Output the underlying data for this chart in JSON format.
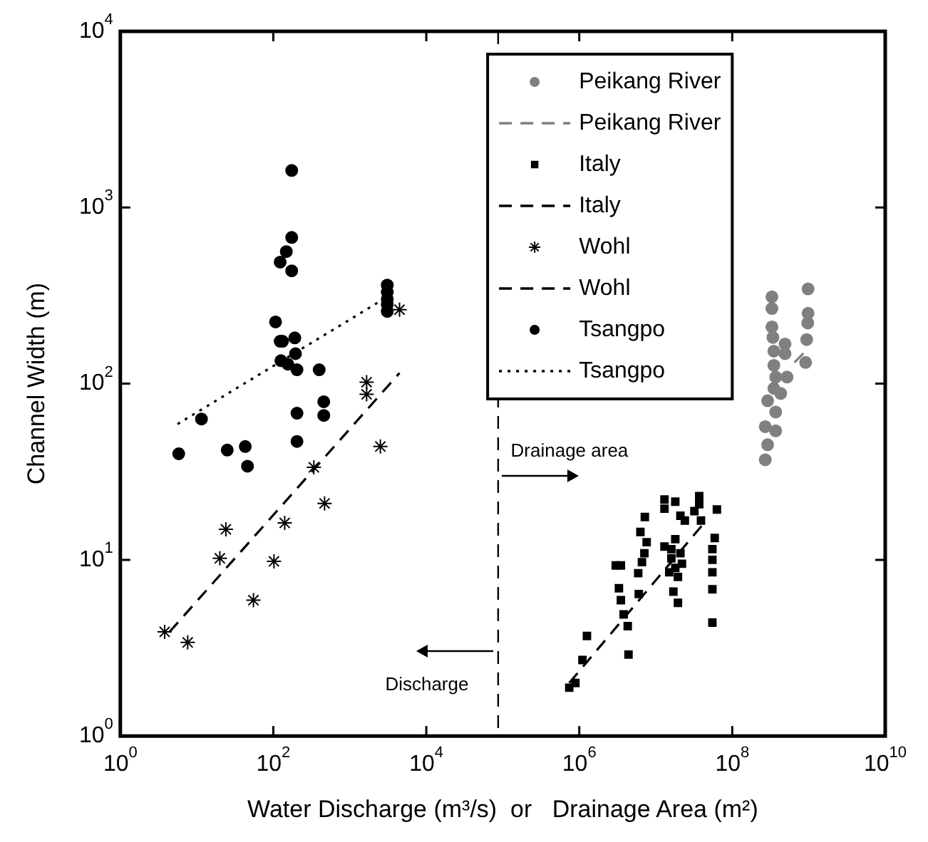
{
  "chart_data": {
    "type": "scatter",
    "xlabel": "Water Discharge (m³/s)  or   Drainage Area (m²)",
    "ylabel": "Channel Width (m)",
    "log": "xy",
    "grid": false,
    "legend": "top right",
    "xlim": [
      1,
      10000000000
    ],
    "ylim": [
      1,
      10000
    ],
    "xticks": [
      {
        "value": 1,
        "label": "10$^{0}$"
      },
      {
        "value": 100,
        "label": "10$^{2}$"
      },
      {
        "value": 10000,
        "label": "10$^{4}$"
      },
      {
        "value": 1000000,
        "label": "10$^{6}$"
      },
      {
        "value": 100000000,
        "label": "10$^{8}$"
      },
      {
        "value": 10000000000,
        "label": "10$^{10}$"
      }
    ],
    "yticks": [
      {
        "value": 1,
        "label": "10$^{0}$"
      },
      {
        "value": 10,
        "label": "10$^{1}$"
      },
      {
        "value": 100,
        "label": "10$^{2}$"
      },
      {
        "value": 1000,
        "label": "10$^{3}$"
      },
      {
        "value": 10000,
        "label": "10$^{4}$"
      }
    ],
    "ref_lines": [
      {
        "axis": "x",
        "value": 87000,
        "color": "#000000",
        "line_style": "dashed"
      }
    ],
    "annotations": [
      "Drainage area",
      "Discharge"
    ],
    "series": [
      {
        "name": "Peikang River",
        "color": "#808080",
        "marker": "circle",
        "x": [
          330000000,
          330000000,
          330000000,
          340000000,
          350000000,
          350000000,
          370000000,
          350000000,
          290000000,
          430000000,
          370000000,
          270000000,
          370000000,
          290000000,
          270000000,
          490000000,
          490000000,
          980000000,
          980000000,
          970000000,
          940000000,
          910000000,
          520000000
        ],
        "values": [
          311,
          267,
          210,
          183,
          153,
          127,
          109,
          94,
          80,
          88,
          69,
          57,
          54,
          45,
          37,
          168,
          148,
          345,
          251,
          221,
          178,
          132,
          109
        ]
      },
      {
        "name": "Peikang River",
        "type": "line",
        "color": "#808080",
        "marker": "none",
        "line_style": "dashed",
        "x": [
          650000000,
          910000000
        ],
        "values": [
          132,
          153
        ]
      },
      {
        "name": "Italy",
        "color": "#000000",
        "marker": "square",
        "x": [
          740000,
          890000,
          1100000,
          1260000,
          4400000,
          3800000,
          4300000,
          3300000,
          3500000,
          6000000,
          3000000,
          3500000,
          5900000,
          6600000,
          7100000,
          6300000,
          7600000,
          7200000,
          13000000,
          13000000,
          18000000,
          21000000,
          24000000,
          13000000,
          16000000,
          18000000,
          19500000,
          17000000,
          19500000,
          15000000,
          21000000,
          22000000,
          18000000,
          16000000,
          37000000,
          37000000,
          32000000,
          39000000,
          63000000,
          59000000,
          55000000,
          55000000,
          55000000,
          55000000,
          55000000
        ],
        "values": [
          1.88,
          2.0,
          2.7,
          3.7,
          2.9,
          4.9,
          4.2,
          6.9,
          5.9,
          6.4,
          9.3,
          9.3,
          8.4,
          9.7,
          10.9,
          14.4,
          12.6,
          17.5,
          22,
          19.5,
          21.4,
          17.8,
          16.7,
          11.9,
          10.2,
          9.0,
          8.0,
          6.6,
          5.7,
          8.5,
          10.9,
          9.5,
          13.1,
          11.5,
          23,
          20.7,
          18.9,
          16.7,
          19.3,
          13.3,
          11.5,
          10.0,
          8.5,
          6.8,
          4.4
        ]
      },
      {
        "name": "Italy",
        "type": "line",
        "color": "#000000",
        "marker": "none",
        "line_style": "dashed",
        "x": [
          740000,
          45000000
        ],
        "values": [
          2.0,
          16.6
        ]
      },
      {
        "name": "Wohl",
        "color": "#000000",
        "marker": "cross",
        "x": [
          3.8,
          7.6,
          20,
          24,
          55,
          102,
          141,
          339,
          468,
          1660,
          1660,
          2510,
          4470
        ],
        "values": [
          3.9,
          3.4,
          10.2,
          14.9,
          5.9,
          9.8,
          16.2,
          33.5,
          20.9,
          102,
          87,
          44,
          263
        ]
      },
      {
        "name": "Wohl",
        "type": "line",
        "color": "#000000",
        "marker": "none",
        "line_style": "dashed",
        "x": [
          4.4,
          4470
        ],
        "values": [
          3.9,
          115
        ]
      },
      {
        "name": "Tsangpo",
        "color": "#000000",
        "marker": "circle",
        "x": [
          174,
          174,
          148,
          123,
          174,
          107,
          123,
          132,
          191,
          195,
          126,
          155,
          204,
          398,
          457,
          457,
          204,
          204,
          11.5,
          5.8,
          25,
          43,
          46,
          3090,
          3090,
          3090,
          3090,
          3090
        ],
        "values": [
          1622,
          676,
          562,
          490,
          437,
          224,
          174,
          174,
          182,
          148,
          135,
          129,
          120,
          120,
          79,
          66,
          68,
          47,
          63,
          40,
          42,
          44,
          34,
          363,
          331,
          302,
          282,
          257
        ]
      },
      {
        "name": "Tsangpo",
        "type": "line",
        "color": "#000000",
        "marker": "none",
        "line_style": "dotted",
        "x": [
          5.6,
          3020
        ],
        "values": [
          59,
          309
        ]
      }
    ]
  }
}
